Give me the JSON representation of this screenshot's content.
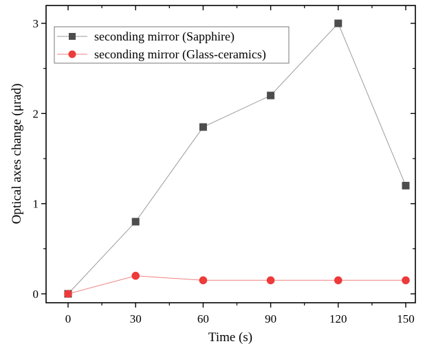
{
  "chart_data": {
    "type": "line",
    "title": "",
    "xlabel": "Time (s)",
    "ylabel": "Optical axes change (μrad)",
    "x": [
      0,
      30,
      60,
      90,
      120,
      150
    ],
    "xlim": [
      -15,
      159
    ],
    "ylim": [
      -0.1,
      3.2
    ],
    "xticks": [
      0,
      30,
      60,
      90,
      120,
      150
    ],
    "yticks": [
      0,
      1,
      2,
      3
    ],
    "grid": false,
    "legend_position": "top-left",
    "series": [
      {
        "name": "seconding mirror (Sapphire)",
        "marker": "square",
        "color": "#4d4d4d",
        "line_color": "#9a9a9a",
        "values": [
          0,
          0.8,
          1.85,
          2.2,
          3.0,
          1.2
        ]
      },
      {
        "name": "seconding mirror (Glass-ceramics)",
        "marker": "circle",
        "color": "#ee3a3a",
        "line_color": "#f08080",
        "values": [
          0,
          0.2,
          0.15,
          0.15,
          0.15,
          0.15
        ]
      }
    ]
  }
}
